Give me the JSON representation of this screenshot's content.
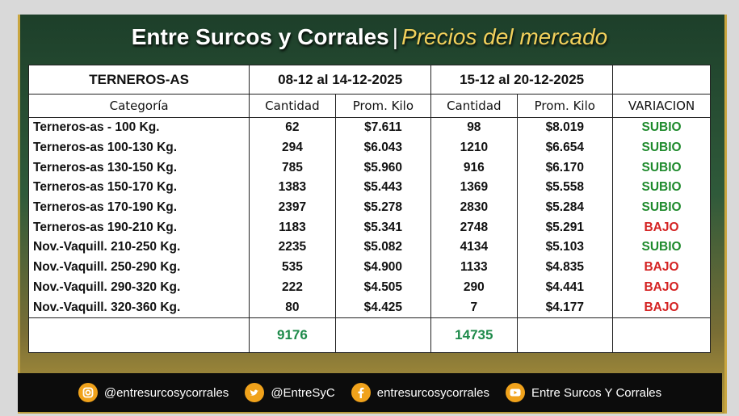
{
  "header": {
    "title": "Entre Surcos y Corrales",
    "separator": "|",
    "subtitle": "Precios del mercado"
  },
  "table": {
    "corner": "TERNEROS-AS",
    "periods": [
      "08-12 al 14-12-2025",
      "15-12 al 20-12-2025"
    ],
    "columns": [
      "Categoría",
      "Cantidad",
      "Prom. Kilo",
      "Cantidad",
      "Prom. Kilo",
      "VARIACION"
    ],
    "rows": [
      [
        "Terneros-as - 100 Kg.",
        "62",
        "$7.611",
        "98",
        "$8.019",
        "SUBIO"
      ],
      [
        "Terneros-as 100-130 Kg.",
        "294",
        "$6.043",
        "1210",
        "$6.654",
        "SUBIO"
      ],
      [
        "Terneros-as 130-150 Kg.",
        "785",
        "$5.960",
        "916",
        "$6.170",
        "SUBIO"
      ],
      [
        "Terneros-as 150-170 Kg.",
        "1383",
        "$5.443",
        "1369",
        "$5.558",
        "SUBIO"
      ],
      [
        "Terneros-as 170-190 Kg.",
        "2397",
        "$5.278",
        "2830",
        "$5.284",
        "SUBIO"
      ],
      [
        "Terneros-as 190-210 Kg.",
        "1183",
        "$5.341",
        "2748",
        "$5.291",
        "BAJO"
      ],
      [
        "Nov.-Vaquill. 210-250 Kg.",
        "2235",
        "$5.082",
        "4134",
        "$5.103",
        "SUBIO"
      ],
      [
        "Nov.-Vaquill. 250-290 Kg.",
        "535",
        "$4.900",
        "1133",
        "$4.835",
        "BAJO"
      ],
      [
        "Nov.-Vaquill. 290-320 Kg.",
        "222",
        "$4.505",
        "290",
        "$4.441",
        "BAJO"
      ],
      [
        "Nov.-Vaquill. 320-360 Kg.",
        "80",
        "$4.425",
        "7",
        "$4.177",
        "BAJO"
      ]
    ],
    "totals": [
      "9176",
      "14735"
    ],
    "variation_colors": {
      "SUBIO": "#1e8a2c",
      "BAJO": "#d42323"
    },
    "total_color": "#1e8a4a"
  },
  "footer": {
    "links": [
      "@entresurcosycorrales",
      "@EntreSyC",
      "entresurcosycorrales",
      "Entre Surcos Y Corrales"
    ]
  }
}
